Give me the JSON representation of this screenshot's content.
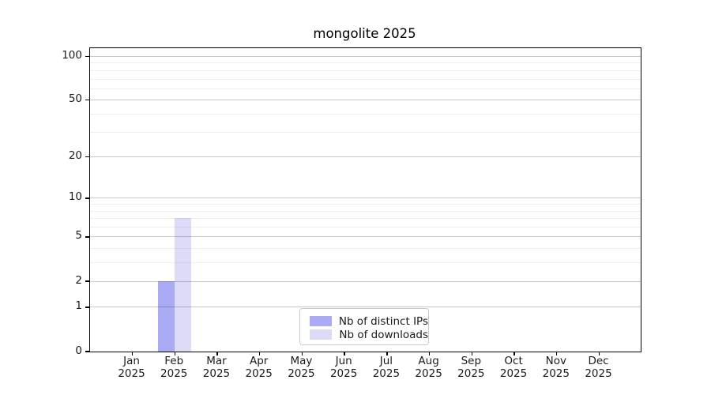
{
  "chart_data": {
    "type": "bar",
    "title": "mongolite 2025",
    "categories": [
      {
        "month": "Jan",
        "year": "2025"
      },
      {
        "month": "Feb",
        "year": "2025"
      },
      {
        "month": "Mar",
        "year": "2025"
      },
      {
        "month": "Apr",
        "year": "2025"
      },
      {
        "month": "May",
        "year": "2025"
      },
      {
        "month": "Jun",
        "year": "2025"
      },
      {
        "month": "Jul",
        "year": "2025"
      },
      {
        "month": "Aug",
        "year": "2025"
      },
      {
        "month": "Sep",
        "year": "2025"
      },
      {
        "month": "Oct",
        "year": "2025"
      },
      {
        "month": "Nov",
        "year": "2025"
      },
      {
        "month": "Dec",
        "year": "2025"
      }
    ],
    "series": [
      {
        "name": "Nb of distinct IPs",
        "color": "#aaaaf5",
        "values": [
          0,
          2,
          0,
          0,
          0,
          0,
          0,
          0,
          0,
          0,
          0,
          0
        ]
      },
      {
        "name": "Nb of downloads",
        "color": "#dcdcf8",
        "values": [
          0,
          7,
          0,
          0,
          0,
          0,
          0,
          0,
          0,
          0,
          0,
          0
        ]
      }
    ],
    "yscale": "log1p",
    "yticks": [
      0,
      1,
      2,
      5,
      10,
      20,
      50,
      100
    ],
    "minor_yticks": [
      3,
      4,
      6,
      7,
      8,
      9,
      30,
      40,
      60,
      70,
      80,
      90
    ],
    "ylim": [
      0,
      114
    ],
    "xlabel": "",
    "ylabel": "",
    "grid": "horizontal",
    "legend_position": "bottom-center"
  },
  "legend": {
    "items": [
      {
        "label": "Nb of distinct IPs",
        "color": "#aaaaf5"
      },
      {
        "label": "Nb of downloads",
        "color": "#dcdcf8"
      }
    ]
  }
}
